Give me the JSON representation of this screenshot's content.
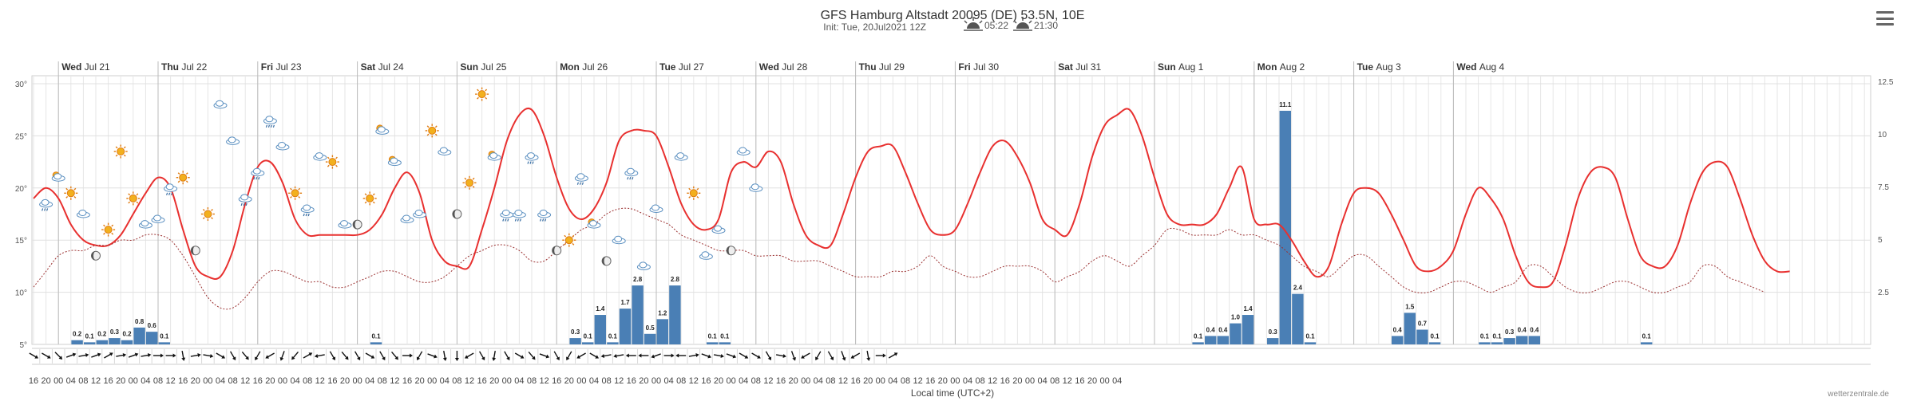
{
  "header": {
    "title": "GFS Hamburg Altstadt 20095 (DE) 53.5N, 10E",
    "subtitle_init": "Init: Tue, 20Jul2021 12Z",
    "sunrise": "05:22",
    "sunset": "21:30"
  },
  "credit": "wetterzentrale.de",
  "chart_data": {
    "type": "line",
    "xlabel": "Local time (UTC+2)",
    "ylim_left": [
      0,
      30
    ],
    "ylim_right": [
      0,
      12.5
    ],
    "left_ticks": [
      "5°",
      "10°",
      "15°",
      "20°",
      "25°",
      "30°"
    ],
    "right_ticks": [
      "2.5",
      "5",
      "7.5",
      "10",
      "12.5"
    ],
    "day_labels": [
      {
        "dow": "Wed",
        "date": "Jul 21"
      },
      {
        "dow": "Thu",
        "date": "Jul 22"
      },
      {
        "dow": "Fri",
        "date": "Jul 23"
      },
      {
        "dow": "Sat",
        "date": "Jul 24"
      },
      {
        "dow": "Sun",
        "date": "Jul 25"
      },
      {
        "dow": "Mon",
        "date": "Jul 26"
      },
      {
        "dow": "Tue",
        "date": "Jul 27"
      },
      {
        "dow": "Wed",
        "date": "Jul 28"
      },
      {
        "dow": "Thu",
        "date": "Jul 29"
      },
      {
        "dow": "Fri",
        "date": "Jul 30"
      },
      {
        "dow": "Sat",
        "date": "Jul 31"
      },
      {
        "dow": "Sun",
        "date": "Aug 1"
      },
      {
        "dow": "Mon",
        "date": "Aug 2"
      },
      {
        "dow": "Tue",
        "date": "Aug 3"
      },
      {
        "dow": "Wed",
        "date": "Aug 4"
      }
    ],
    "hour_labels": [
      "16",
      "20",
      "00",
      "04",
      "08",
      "12",
      "16",
      "20",
      "00",
      "04",
      "08",
      "12",
      "16",
      "20",
      "00",
      "04",
      "08",
      "12",
      "16",
      "20",
      "00",
      "04",
      "08",
      "12",
      "16",
      "20",
      "00",
      "04",
      "08",
      "12",
      "16",
      "20",
      "00",
      "04",
      "08",
      "12",
      "16",
      "20",
      "00",
      "04",
      "08",
      "12",
      "16",
      "20",
      "00",
      "04",
      "08",
      "12",
      "16",
      "20",
      "00",
      "04",
      "08",
      "12",
      "16",
      "20",
      "00",
      "04",
      "08",
      "12",
      "16",
      "20",
      "00",
      "04",
      "08",
      "12",
      "16",
      "20",
      "00",
      "04",
      "08",
      "12",
      "16",
      "20",
      "00",
      "04",
      "08",
      "12",
      "16",
      "20",
      "00",
      "04",
      "08",
      "12",
      "16",
      "20",
      "00",
      "04"
    ],
    "series": [
      {
        "kind": "temperature",
        "values": [
          19,
          20,
          19,
          16.5,
          15,
          14.5,
          14.5,
          15.5,
          17.5,
          19.5,
          21,
          20,
          16,
          12.5,
          11.5,
          11.5,
          14,
          18.5,
          22,
          22.5,
          20.5,
          17,
          15.5,
          15.5,
          15.5,
          15.5,
          15.5,
          16,
          17.5,
          20,
          21.5,
          19.5,
          15,
          13,
          12.5,
          12.5,
          16,
          20,
          24.5,
          27,
          27.5,
          25,
          21,
          18,
          17,
          18,
          20.5,
          24.5,
          25.5,
          25.5,
          25,
          22,
          18.5,
          16.5,
          16,
          17,
          21.5,
          22.5,
          22,
          23.5,
          22.5,
          18.5,
          15.5,
          14.5,
          14.5,
          17.5,
          21,
          23.5,
          24,
          24,
          21.5,
          18.5,
          16,
          15.5,
          16,
          18.5,
          21.5,
          24,
          24.5,
          23,
          20.5,
          17,
          16,
          15.5,
          18.5,
          23,
          26,
          27,
          27.5,
          25,
          21,
          17.5,
          16.5,
          16.5,
          16.5,
          17.5,
          20,
          22,
          17,
          16.5,
          16.5,
          15,
          13,
          11.5,
          12.5,
          16.5,
          19.5,
          20,
          19.5,
          17.5,
          15,
          12.5,
          12,
          12.5,
          14,
          17.5,
          20,
          19,
          17,
          13.5,
          11,
          10.5,
          11,
          14.5,
          19,
          21.5,
          22,
          21,
          17,
          13.5,
          12.5,
          12.5,
          14.5,
          18.5,
          21.5,
          22.5,
          22,
          19,
          15.5,
          13,
          12,
          12
        ]
      },
      {
        "kind": "dewpoint",
        "values": [
          10.5,
          12,
          13.5,
          14,
          14,
          14.5,
          14.5,
          15,
          15,
          15.5,
          15.5,
          15,
          13.5,
          11.5,
          9.5,
          8.5,
          8.5,
          9.5,
          11,
          12,
          12,
          11.5,
          11,
          11,
          10.5,
          10.5,
          11,
          11.5,
          12,
          12,
          11.5,
          11,
          11,
          11.5,
          12.5,
          13.5,
          14,
          14.5,
          14.5,
          14,
          13,
          13,
          14,
          15,
          16,
          16.5,
          17.5,
          18,
          18,
          17.5,
          17,
          16.5,
          15.5,
          15,
          14.5,
          14,
          14,
          14,
          13.5,
          13.5,
          13.5,
          13,
          13,
          13,
          12.5,
          12,
          11.5,
          11.5,
          11.5,
          12,
          12,
          12.5,
          13.5,
          12.5,
          12,
          11.5,
          11.5,
          12,
          12.5,
          12.5,
          12.5,
          12,
          11,
          11.5,
          12,
          13,
          13.5,
          13,
          12.5,
          13.5,
          14.5,
          16,
          16,
          15.5,
          15.5,
          15.5,
          16,
          15.5,
          15.5,
          15,
          14.5,
          13.5,
          12.5,
          12,
          11.5,
          12.5,
          13.5,
          13.5,
          12.5,
          11.5,
          10.5,
          10,
          10,
          10.5,
          11,
          11,
          10.5,
          10,
          10.5,
          11,
          12.5,
          12.5,
          11.5,
          10.5,
          10,
          10,
          10.5,
          11,
          11,
          10.5,
          10,
          10,
          10.5,
          11,
          12.5,
          12.5,
          11.5,
          11,
          10.5,
          10
        ]
      }
    ],
    "precip_bars": [
      {
        "i": 3,
        "v": 0.2
      },
      {
        "i": 4,
        "v": 0.1
      },
      {
        "i": 5,
        "v": 0.2
      },
      {
        "i": 6,
        "v": 0.3
      },
      {
        "i": 7,
        "v": 0.2
      },
      {
        "i": 8,
        "v": 0.8
      },
      {
        "i": 9,
        "v": 0.6
      },
      {
        "i": 10,
        "v": 0.1
      },
      {
        "i": 27,
        "v": 0.1
      },
      {
        "i": 43,
        "v": 0.3
      },
      {
        "i": 44,
        "v": 0.1
      },
      {
        "i": 45,
        "v": 1.4
      },
      {
        "i": 46,
        "v": 0.1
      },
      {
        "i": 47,
        "v": 1.7
      },
      {
        "i": 48,
        "v": 2.8
      },
      {
        "i": 49,
        "v": 0.5
      },
      {
        "i": 50,
        "v": 1.2
      },
      {
        "i": 51,
        "v": 2.8
      },
      {
        "i": 54,
        "v": 0.1
      },
      {
        "i": 55,
        "v": 0.1
      },
      {
        "i": 93,
        "v": 0.1
      },
      {
        "i": 94,
        "v": 0.4
      },
      {
        "i": 95,
        "v": 0.4
      },
      {
        "i": 96,
        "v": 1.0
      },
      {
        "i": 97,
        "v": 1.4
      },
      {
        "i": 99,
        "v": 0.3
      },
      {
        "i": 100,
        "v": 11.1
      },
      {
        "i": 101,
        "v": 2.4
      },
      {
        "i": 102,
        "v": 0.1
      },
      {
        "i": 109,
        "v": 0.4
      },
      {
        "i": 110,
        "v": 1.5
      },
      {
        "i": 111,
        "v": 0.7
      },
      {
        "i": 112,
        "v": 0.1
      },
      {
        "i": 116,
        "v": 0.1
      },
      {
        "i": 117,
        "v": 0.1
      },
      {
        "i": 118,
        "v": 0.3
      },
      {
        "i": 119,
        "v": 0.4
      },
      {
        "i": 120,
        "v": 0.4
      },
      {
        "i": 129,
        "v": 0.1
      }
    ],
    "wind_directions": [
      300,
      300,
      315,
      250,
      260,
      250,
      240,
      260,
      250,
      260,
      270,
      270,
      350,
      260,
      280,
      300,
      330,
      320,
      30,
      60,
      20,
      40,
      240,
      80,
      330,
      320,
      330,
      300,
      330,
      320,
      270,
      30,
      290,
      350,
      0,
      60,
      330,
      10,
      330,
      300,
      320,
      290,
      330,
      30,
      60,
      300,
      80,
      80,
      90,
      90,
      70,
      270,
      90,
      260,
      290,
      280,
      290,
      300,
      300,
      330,
      280,
      340,
      60,
      30,
      330,
      340,
      60,
      350,
      270,
      240
    ],
    "weather_icons": [
      {
        "i": 1,
        "t": 18.5,
        "icon": "cloud-drizzle-icon"
      },
      {
        "i": 2,
        "t": 21,
        "icon": "partly-sunny-icon"
      },
      {
        "i": 3,
        "t": 19.5,
        "icon": "sun-icon"
      },
      {
        "i": 4,
        "t": 17.5,
        "icon": "cloud-icon"
      },
      {
        "i": 5,
        "t": 13.5,
        "icon": "moon-icon"
      },
      {
        "i": 6,
        "t": 16,
        "icon": "sun-icon"
      },
      {
        "i": 7,
        "t": 23.5,
        "icon": "sun-icon"
      },
      {
        "i": 8,
        "t": 19,
        "icon": "sun-icon"
      },
      {
        "i": 9,
        "t": 16.5,
        "icon": "cloud-icon"
      },
      {
        "i": 10,
        "t": 17,
        "icon": "cloud-icon"
      },
      {
        "i": 11,
        "t": 20,
        "icon": "cloud-drizzle-icon"
      },
      {
        "i": 12,
        "t": 21,
        "icon": "sun-icon"
      },
      {
        "i": 13,
        "t": 14,
        "icon": "moon-icon"
      },
      {
        "i": 14,
        "t": 17.5,
        "icon": "sun-icon"
      },
      {
        "i": 15,
        "t": 28,
        "icon": "cloud-icon"
      },
      {
        "i": 16,
        "t": 24.5,
        "icon": "cloud-icon"
      },
      {
        "i": 17,
        "t": 19,
        "icon": "cloud-drizzle-icon"
      },
      {
        "i": 18,
        "t": 21.5,
        "icon": "cloud-drizzle-icon"
      },
      {
        "i": 19,
        "t": 26.5,
        "icon": "cloud-rain-icon"
      },
      {
        "i": 20,
        "t": 24,
        "icon": "cloud-icon"
      },
      {
        "i": 21,
        "t": 19.5,
        "icon": "sun-icon"
      },
      {
        "i": 22,
        "t": 18,
        "icon": "cloud-drizzle-icon"
      },
      {
        "i": 23,
        "t": 23,
        "icon": "cloud-icon"
      },
      {
        "i": 24,
        "t": 22.5,
        "icon": "sun-icon"
      },
      {
        "i": 25,
        "t": 16.5,
        "icon": "cloud-icon"
      },
      {
        "i": 26,
        "t": 16.5,
        "icon": "moon-icon"
      },
      {
        "i": 27,
        "t": 19,
        "icon": "sun-icon"
      },
      {
        "i": 28,
        "t": 25.5,
        "icon": "partly-sunny-icon"
      },
      {
        "i": 29,
        "t": 22.5,
        "icon": "partly-sunny-icon"
      },
      {
        "i": 30,
        "t": 17,
        "icon": "cloud-icon"
      },
      {
        "i": 31,
        "t": 17.5,
        "icon": "cloud-icon"
      },
      {
        "i": 32,
        "t": 25.5,
        "icon": "sun-icon"
      },
      {
        "i": 33,
        "t": 23.5,
        "icon": "cloud-icon"
      },
      {
        "i": 34,
        "t": 17.5,
        "icon": "moon-icon"
      },
      {
        "i": 35,
        "t": 20.5,
        "icon": "sun-icon"
      },
      {
        "i": 36,
        "t": 29,
        "icon": "sun-icon"
      },
      {
        "i": 37,
        "t": 23,
        "icon": "partly-sunny-icon"
      },
      {
        "i": 38,
        "t": 17.5,
        "icon": "cloud-drizzle-icon"
      },
      {
        "i": 39,
        "t": 17.5,
        "icon": "cloud-drizzle-icon"
      },
      {
        "i": 40,
        "t": 23,
        "icon": "cloud-drizzle-icon"
      },
      {
        "i": 41,
        "t": 17.5,
        "icon": "cloud-drizzle-icon"
      },
      {
        "i": 42,
        "t": 14,
        "icon": "moon-icon"
      },
      {
        "i": 43,
        "t": 15,
        "icon": "sun-icon"
      },
      {
        "i": 44,
        "t": 21,
        "icon": "cloud-drizzle-icon"
      },
      {
        "i": 45,
        "t": 16.5,
        "icon": "partly-sunny-icon"
      },
      {
        "i": 46,
        "t": 13,
        "icon": "moon-icon"
      },
      {
        "i": 47,
        "t": 15,
        "icon": "cloud-icon"
      },
      {
        "i": 48,
        "t": 21.5,
        "icon": "cloud-drizzle-icon"
      },
      {
        "i": 49,
        "t": 12.5,
        "icon": "cloud-icon"
      },
      {
        "i": 50,
        "t": 18,
        "icon": "cloud-icon"
      },
      {
        "i": 52,
        "t": 23,
        "icon": "cloud-icon"
      },
      {
        "i": 53,
        "t": 19.5,
        "icon": "sun-icon"
      },
      {
        "i": 54,
        "t": 13.5,
        "icon": "cloud-icon"
      },
      {
        "i": 55,
        "t": 16,
        "icon": "cloud-icon"
      },
      {
        "i": 56,
        "t": 14,
        "icon": "moon-icon"
      },
      {
        "i": 57,
        "t": 23.5,
        "icon": "cloud-icon"
      },
      {
        "i": 58,
        "t": 20,
        "icon": "cloud-icon"
      }
    ],
    "colors": {
      "temperature": "#e8302f",
      "dewpoint": "#9b3030",
      "precip": "#4a7fb5",
      "grid": "#e6e6e6"
    }
  }
}
